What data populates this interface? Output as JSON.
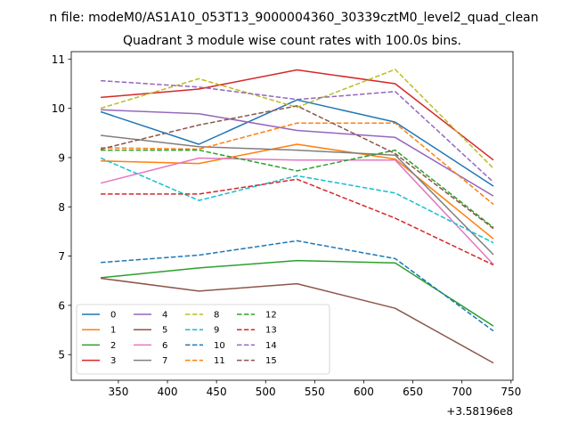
{
  "header": {
    "file_line": "n file: modeM0/AS1A10_053T13_9000004360_30339cztM0_level2_quad_clean"
  },
  "chart_data": {
    "type": "line",
    "title": "Quadrant 3 module wise count rates with 100.0s bins.",
    "xlabel": "",
    "ylabel": "",
    "x_offset_label": "+3.58196e8",
    "xlim": [
      302,
      752
    ],
    "ylim": [
      4.48,
      11.15
    ],
    "x_ticks": [
      350,
      400,
      450,
      500,
      550,
      600,
      650,
      700,
      750
    ],
    "y_ticks": [
      5,
      6,
      7,
      8,
      9,
      10,
      11
    ],
    "grid": false,
    "legend_position": "lower-left",
    "x": [
      332,
      432,
      532,
      632,
      732
    ],
    "series": [
      {
        "name": "0",
        "color": "#1f77b4",
        "dash": "solid",
        "values": [
          9.93,
          9.27,
          10.17,
          9.72,
          8.42
        ]
      },
      {
        "name": "1",
        "color": "#ff7f0e",
        "dash": "solid",
        "values": [
          8.93,
          8.88,
          9.27,
          8.97,
          7.35
        ]
      },
      {
        "name": "2",
        "color": "#2ca02c",
        "dash": "solid",
        "values": [
          6.56,
          6.76,
          6.91,
          6.86,
          5.58
        ]
      },
      {
        "name": "3",
        "color": "#d62728",
        "dash": "solid",
        "values": [
          10.22,
          10.39,
          10.78,
          10.5,
          8.95
        ]
      },
      {
        "name": "4",
        "color": "#9467bd",
        "dash": "solid",
        "values": [
          9.97,
          9.89,
          9.55,
          9.41,
          8.22
        ]
      },
      {
        "name": "5",
        "color": "#8c564b",
        "dash": "solid",
        "values": [
          6.55,
          6.29,
          6.44,
          5.94,
          4.83
        ]
      },
      {
        "name": "6",
        "color": "#e377c2",
        "dash": "solid",
        "values": [
          8.48,
          8.99,
          8.95,
          8.95,
          6.83
        ]
      },
      {
        "name": "7",
        "color": "#7f7f7f",
        "dash": "solid",
        "values": [
          9.45,
          9.22,
          9.15,
          9.05,
          7.03
        ]
      },
      {
        "name": "8",
        "color": "#bcbd22",
        "dash": "dashed",
        "values": [
          10.0,
          10.6,
          10.02,
          10.79,
          8.78
        ]
      },
      {
        "name": "9",
        "color": "#17becf",
        "dash": "dashed",
        "values": [
          8.99,
          8.13,
          8.63,
          8.28,
          7.27
        ]
      },
      {
        "name": "10",
        "color": "#1f77b4",
        "dash": "dashed",
        "values": [
          6.87,
          7.02,
          7.31,
          6.95,
          5.48
        ]
      },
      {
        "name": "11",
        "color": "#ff7f0e",
        "dash": "dashed",
        "values": [
          9.2,
          9.17,
          9.7,
          9.7,
          8.05
        ]
      },
      {
        "name": "12",
        "color": "#2ca02c",
        "dash": "dashed",
        "values": [
          9.15,
          9.15,
          8.73,
          9.15,
          7.58
        ]
      },
      {
        "name": "13",
        "color": "#d62728",
        "dash": "dashed",
        "values": [
          8.26,
          8.26,
          8.56,
          7.77,
          6.82
        ]
      },
      {
        "name": "14",
        "color": "#9467bd",
        "dash": "dashed",
        "values": [
          10.56,
          10.43,
          10.18,
          10.34,
          8.5
        ]
      },
      {
        "name": "15",
        "color": "#8c564b",
        "dash": "dashed",
        "values": [
          9.17,
          9.66,
          10.05,
          9.08,
          7.56
        ]
      }
    ]
  }
}
